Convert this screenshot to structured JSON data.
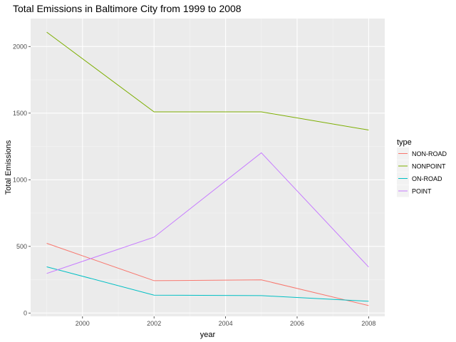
{
  "chart_data": {
    "type": "line",
    "title": "Total Emissions in Baltimore City from 1999 to 2008",
    "xlabel": "year",
    "ylabel": "Total Emissions",
    "x": [
      1999,
      2002,
      2005,
      2008
    ],
    "xticks": [
      2000,
      2002,
      2004,
      2006,
      2008
    ],
    "yticks": [
      0,
      500,
      1000,
      1500,
      2000
    ],
    "xlim": [
      1998.55,
      2008.45
    ],
    "ylim": [
      -25,
      2210
    ],
    "grid": true,
    "legend": {
      "title": "type",
      "placement": "right"
    },
    "series": [
      {
        "name": "NON-ROAD",
        "color": "#F8766D",
        "values": [
          522.94,
          242.85,
          248.93,
          55.82
        ]
      },
      {
        "name": "NONPOINT",
        "color": "#7CAE00",
        "values": [
          2107.63,
          1509.5,
          1509.5,
          1373.21
        ]
      },
      {
        "name": "ON-ROAD",
        "color": "#00BFC4",
        "values": [
          346.82,
          134.31,
          130.43,
          88.28
        ]
      },
      {
        "name": "POINT",
        "color": "#C77CFF",
        "values": [
          296.8,
          569.26,
          1202.49,
          344.98
        ]
      }
    ]
  }
}
